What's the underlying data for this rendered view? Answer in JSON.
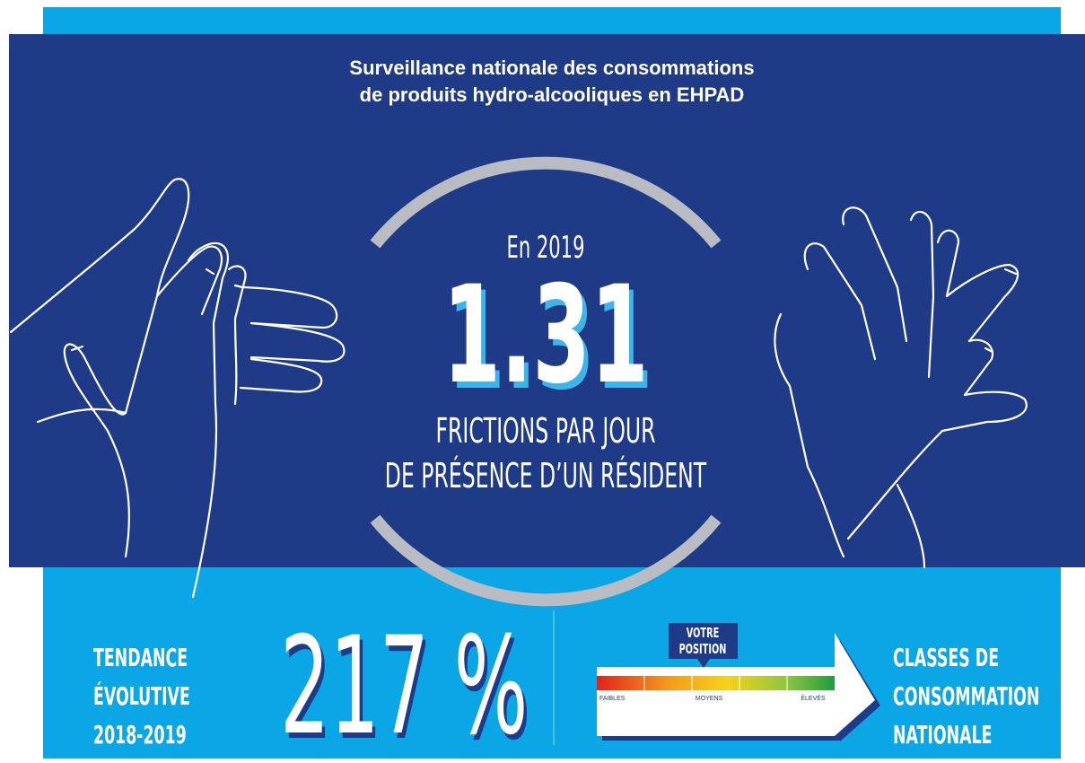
{
  "header": {
    "title_lines": [
      "Surveillance nationale des consommations",
      "de produits hydro-alcooliques en EHPAD"
    ]
  },
  "main": {
    "year": "En 2019",
    "value": "1.31",
    "unit_lines": [
      "FRICTIONS PAR JOUR",
      "DE PRÉSENCE D’UN RÉSIDENT"
    ]
  },
  "trend": {
    "label_lines": [
      "TENDANCE",
      "ÉVOLUTIVE",
      "2018-2019"
    ],
    "value": "217 %"
  },
  "scale": {
    "position_lines": [
      "VOTRE",
      "POSITION"
    ],
    "levels": [
      "FAIBLES",
      "MOYENS",
      "ÉLEVÉS"
    ],
    "label_lines": [
      "CLASSES DE",
      "CONSOMMATION",
      "NATIONALE"
    ]
  }
}
